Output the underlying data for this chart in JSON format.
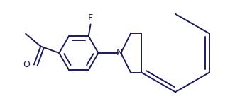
{
  "bg_color": "#ffffff",
  "line_color": "#1a1a5e",
  "line_width": 1.4,
  "font_size_F": 9,
  "font_size_N": 9,
  "font_size_O": 9,
  "F_label": "F",
  "N_label": "N",
  "O_label": "O",
  "figsize": [
    3.31,
    1.5
  ],
  "dpi": 100
}
